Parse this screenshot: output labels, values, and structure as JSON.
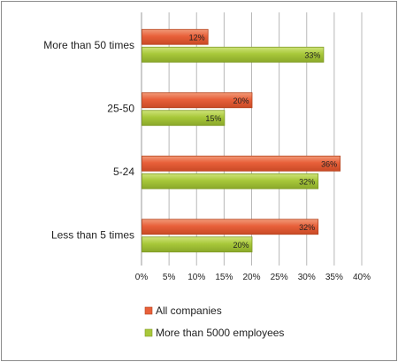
{
  "chart_data": {
    "type": "bar",
    "orientation": "horizontal",
    "title": "",
    "xlabel": "",
    "ylabel": "",
    "categories": [
      "More than 50 times",
      "25-50",
      "5-24",
      "Less than 5 times"
    ],
    "series": [
      {
        "name": "All companies",
        "color": "#e8603a",
        "values": [
          12,
          20,
          36,
          32
        ],
        "labels": [
          "12%",
          "20%",
          "36%",
          "32%"
        ]
      },
      {
        "name": "More than 5000 employees",
        "color": "#a8c83a",
        "values": [
          33,
          15,
          32,
          20
        ],
        "labels": [
          "33%",
          "15%",
          "32%",
          "20%"
        ]
      }
    ],
    "xlim": [
      0,
      40
    ],
    "xticks": [
      0,
      5,
      10,
      15,
      20,
      25,
      30,
      35,
      40
    ],
    "xtick_labels": [
      "0%",
      "5%",
      "10%",
      "15%",
      "20%",
      "25%",
      "30%",
      "35%",
      "40%"
    ],
    "grid": true,
    "legend_position": "bottom-left"
  }
}
